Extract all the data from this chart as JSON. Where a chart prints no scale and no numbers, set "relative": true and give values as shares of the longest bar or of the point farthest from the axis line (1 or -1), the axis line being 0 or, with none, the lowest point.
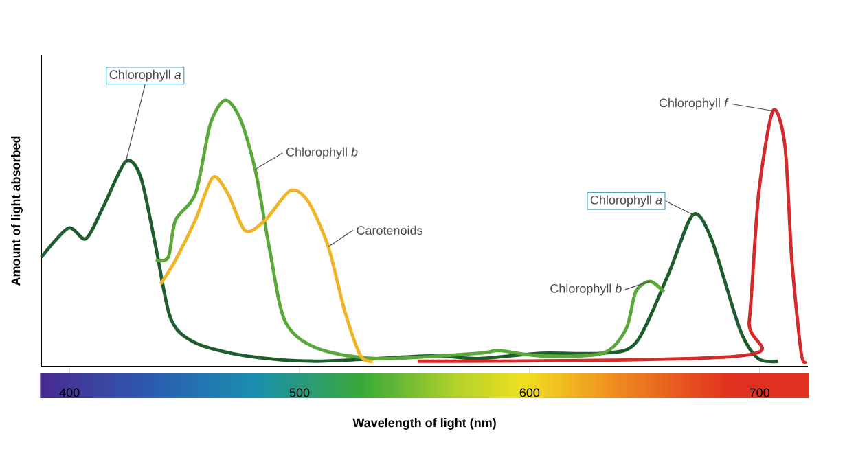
{
  "chart_data": {
    "type": "line",
    "xlabel": "Wavelength of light (nm)",
    "ylabel": "Amount of light absorbed",
    "relative": true,
    "xlim": [
      387.7,
      721
    ],
    "xticks": [
      400,
      500,
      600,
      700
    ],
    "series": [
      {
        "name": "Chlorophyll *a*",
        "color": "#1e5e2e",
        "x": [
          387.7,
          399.5,
          407.1,
          414.7,
          424.5,
          431.0,
          437.5,
          444.0,
          454.5,
          476.6,
          507.4,
          556.6,
          577.8,
          604.9,
          631.5,
          646.3,
          660.5,
          671.0,
          679.0,
          691.4,
          699.4,
          708.0
        ],
        "values": [
          0.41,
          0.52,
          0.48,
          0.6,
          0.77,
          0.71,
          0.45,
          0.18,
          0.09,
          0.04,
          0.02,
          0.04,
          0.03,
          0.05,
          0.05,
          0.09,
          0.35,
          0.57,
          0.48,
          0.14,
          0.03,
          0.02
        ]
      },
      {
        "name": "Chlorophyll *b*",
        "color": "#5aa83a",
        "x": [
          437.5,
          442.9,
          446.1,
          454.8,
          461.2,
          467.7,
          474.2,
          480.7,
          487.2,
          493.7,
          507.2,
          533.6,
          577.8,
          586.6,
          604.9,
          631.7,
          641.9,
          646.1,
          652.3,
          658.5
        ],
        "values": [
          0.4,
          0.41,
          0.55,
          0.65,
          0.91,
          1.0,
          0.93,
          0.74,
          0.43,
          0.17,
          0.07,
          0.03,
          0.05,
          0.06,
          0.04,
          0.05,
          0.14,
          0.28,
          0.32,
          0.28
        ]
      },
      {
        "name": "Carotenoids",
        "color": "#f0b429",
        "x": [
          439.6,
          446.1,
          454.7,
          462.3,
          468.8,
          476.4,
          485.1,
          495.9,
          503.7,
          512.5,
          519.6,
          526.6,
          531.9
        ],
        "values": [
          0.31,
          0.4,
          0.55,
          0.71,
          0.65,
          0.51,
          0.55,
          0.66,
          0.62,
          0.45,
          0.21,
          0.04,
          0.02
        ]
      },
      {
        "name": "Chlorophyll *f*",
        "color": "#d42a2a",
        "x": [
          551.3,
          691.4,
          695.5,
          699.6,
          705.8,
          711.0,
          714.0,
          718.1,
          720.2
        ],
        "values": [
          0.02,
          0.04,
          0.17,
          0.65,
          0.96,
          0.83,
          0.4,
          0.05,
          0.02
        ]
      }
    ],
    "annotations": [
      "Chlorophyll *a*",
      "Chlorophyll *b*"
    ]
  }
}
